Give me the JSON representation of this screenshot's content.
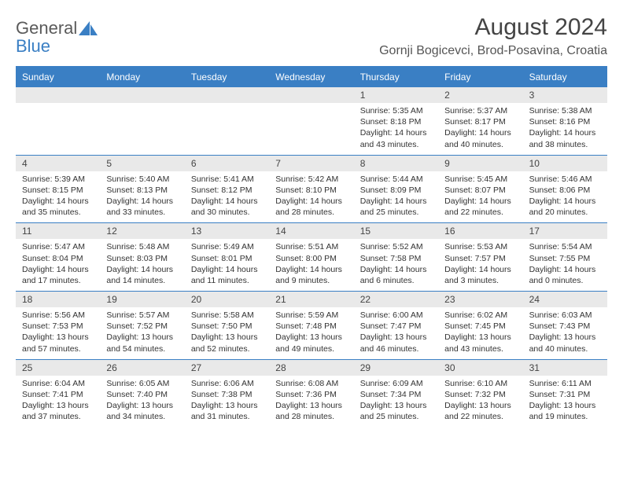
{
  "logo": {
    "word1": "General",
    "word2": "Blue"
  },
  "title": "August 2024",
  "location": "Gornji Bogicevci, Brod-Posavina, Croatia",
  "colors": {
    "accent": "#3a7fc4",
    "header_text": "#ffffff",
    "daynum_bg": "#e9e9e9",
    "body_text": "#333333"
  },
  "dow": [
    "Sunday",
    "Monday",
    "Tuesday",
    "Wednesday",
    "Thursday",
    "Friday",
    "Saturday"
  ],
  "weeks": [
    [
      {
        "n": "",
        "sr": "",
        "ss": "",
        "dl": ""
      },
      {
        "n": "",
        "sr": "",
        "ss": "",
        "dl": ""
      },
      {
        "n": "",
        "sr": "",
        "ss": "",
        "dl": ""
      },
      {
        "n": "",
        "sr": "",
        "ss": "",
        "dl": ""
      },
      {
        "n": "1",
        "sr": "Sunrise: 5:35 AM",
        "ss": "Sunset: 8:18 PM",
        "dl": "Daylight: 14 hours and 43 minutes."
      },
      {
        "n": "2",
        "sr": "Sunrise: 5:37 AM",
        "ss": "Sunset: 8:17 PM",
        "dl": "Daylight: 14 hours and 40 minutes."
      },
      {
        "n": "3",
        "sr": "Sunrise: 5:38 AM",
        "ss": "Sunset: 8:16 PM",
        "dl": "Daylight: 14 hours and 38 minutes."
      }
    ],
    [
      {
        "n": "4",
        "sr": "Sunrise: 5:39 AM",
        "ss": "Sunset: 8:15 PM",
        "dl": "Daylight: 14 hours and 35 minutes."
      },
      {
        "n": "5",
        "sr": "Sunrise: 5:40 AM",
        "ss": "Sunset: 8:13 PM",
        "dl": "Daylight: 14 hours and 33 minutes."
      },
      {
        "n": "6",
        "sr": "Sunrise: 5:41 AM",
        "ss": "Sunset: 8:12 PM",
        "dl": "Daylight: 14 hours and 30 minutes."
      },
      {
        "n": "7",
        "sr": "Sunrise: 5:42 AM",
        "ss": "Sunset: 8:10 PM",
        "dl": "Daylight: 14 hours and 28 minutes."
      },
      {
        "n": "8",
        "sr": "Sunrise: 5:44 AM",
        "ss": "Sunset: 8:09 PM",
        "dl": "Daylight: 14 hours and 25 minutes."
      },
      {
        "n": "9",
        "sr": "Sunrise: 5:45 AM",
        "ss": "Sunset: 8:07 PM",
        "dl": "Daylight: 14 hours and 22 minutes."
      },
      {
        "n": "10",
        "sr": "Sunrise: 5:46 AM",
        "ss": "Sunset: 8:06 PM",
        "dl": "Daylight: 14 hours and 20 minutes."
      }
    ],
    [
      {
        "n": "11",
        "sr": "Sunrise: 5:47 AM",
        "ss": "Sunset: 8:04 PM",
        "dl": "Daylight: 14 hours and 17 minutes."
      },
      {
        "n": "12",
        "sr": "Sunrise: 5:48 AM",
        "ss": "Sunset: 8:03 PM",
        "dl": "Daylight: 14 hours and 14 minutes."
      },
      {
        "n": "13",
        "sr": "Sunrise: 5:49 AM",
        "ss": "Sunset: 8:01 PM",
        "dl": "Daylight: 14 hours and 11 minutes."
      },
      {
        "n": "14",
        "sr": "Sunrise: 5:51 AM",
        "ss": "Sunset: 8:00 PM",
        "dl": "Daylight: 14 hours and 9 minutes."
      },
      {
        "n": "15",
        "sr": "Sunrise: 5:52 AM",
        "ss": "Sunset: 7:58 PM",
        "dl": "Daylight: 14 hours and 6 minutes."
      },
      {
        "n": "16",
        "sr": "Sunrise: 5:53 AM",
        "ss": "Sunset: 7:57 PM",
        "dl": "Daylight: 14 hours and 3 minutes."
      },
      {
        "n": "17",
        "sr": "Sunrise: 5:54 AM",
        "ss": "Sunset: 7:55 PM",
        "dl": "Daylight: 14 hours and 0 minutes."
      }
    ],
    [
      {
        "n": "18",
        "sr": "Sunrise: 5:56 AM",
        "ss": "Sunset: 7:53 PM",
        "dl": "Daylight: 13 hours and 57 minutes."
      },
      {
        "n": "19",
        "sr": "Sunrise: 5:57 AM",
        "ss": "Sunset: 7:52 PM",
        "dl": "Daylight: 13 hours and 54 minutes."
      },
      {
        "n": "20",
        "sr": "Sunrise: 5:58 AM",
        "ss": "Sunset: 7:50 PM",
        "dl": "Daylight: 13 hours and 52 minutes."
      },
      {
        "n": "21",
        "sr": "Sunrise: 5:59 AM",
        "ss": "Sunset: 7:48 PM",
        "dl": "Daylight: 13 hours and 49 minutes."
      },
      {
        "n": "22",
        "sr": "Sunrise: 6:00 AM",
        "ss": "Sunset: 7:47 PM",
        "dl": "Daylight: 13 hours and 46 minutes."
      },
      {
        "n": "23",
        "sr": "Sunrise: 6:02 AM",
        "ss": "Sunset: 7:45 PM",
        "dl": "Daylight: 13 hours and 43 minutes."
      },
      {
        "n": "24",
        "sr": "Sunrise: 6:03 AM",
        "ss": "Sunset: 7:43 PM",
        "dl": "Daylight: 13 hours and 40 minutes."
      }
    ],
    [
      {
        "n": "25",
        "sr": "Sunrise: 6:04 AM",
        "ss": "Sunset: 7:41 PM",
        "dl": "Daylight: 13 hours and 37 minutes."
      },
      {
        "n": "26",
        "sr": "Sunrise: 6:05 AM",
        "ss": "Sunset: 7:40 PM",
        "dl": "Daylight: 13 hours and 34 minutes."
      },
      {
        "n": "27",
        "sr": "Sunrise: 6:06 AM",
        "ss": "Sunset: 7:38 PM",
        "dl": "Daylight: 13 hours and 31 minutes."
      },
      {
        "n": "28",
        "sr": "Sunrise: 6:08 AM",
        "ss": "Sunset: 7:36 PM",
        "dl": "Daylight: 13 hours and 28 minutes."
      },
      {
        "n": "29",
        "sr": "Sunrise: 6:09 AM",
        "ss": "Sunset: 7:34 PM",
        "dl": "Daylight: 13 hours and 25 minutes."
      },
      {
        "n": "30",
        "sr": "Sunrise: 6:10 AM",
        "ss": "Sunset: 7:32 PM",
        "dl": "Daylight: 13 hours and 22 minutes."
      },
      {
        "n": "31",
        "sr": "Sunrise: 6:11 AM",
        "ss": "Sunset: 7:31 PM",
        "dl": "Daylight: 13 hours and 19 minutes."
      }
    ]
  ]
}
